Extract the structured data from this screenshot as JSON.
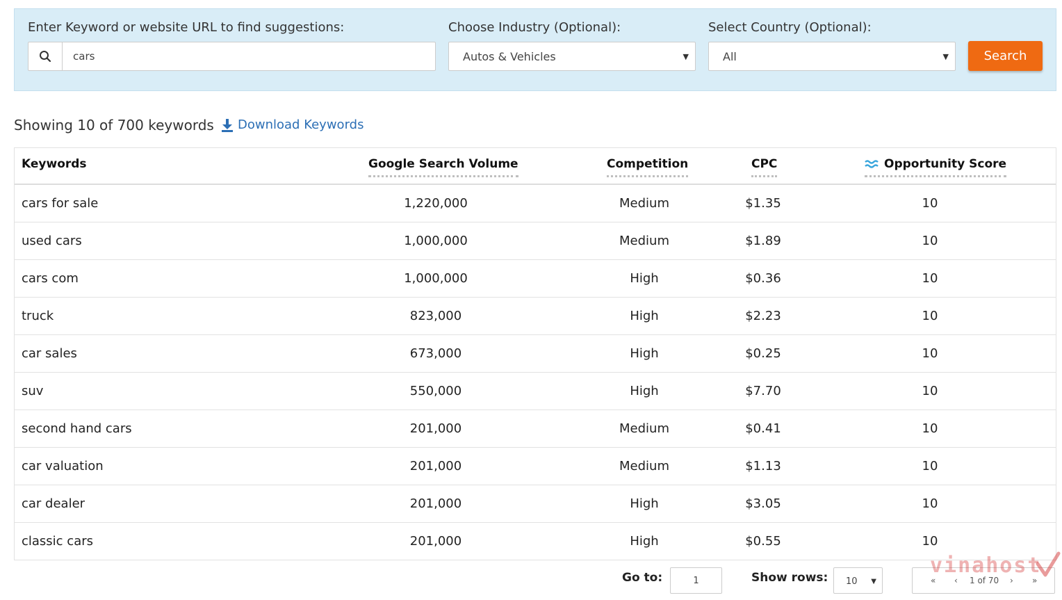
{
  "search_panel": {
    "keyword_label": "Enter Keyword or website URL to find suggestions:",
    "keyword_value": "cars",
    "industry_label": "Choose Industry (Optional):",
    "industry_value": "Autos & Vehicles",
    "country_label": "Select Country (Optional):",
    "country_value": "All",
    "search_button": "Search",
    "search_icon": "search-icon"
  },
  "summary": {
    "showing_text": "Showing 10 of 700 keywords",
    "download_label": "Download Keywords",
    "download_icon": "download-icon"
  },
  "table": {
    "headers": {
      "keywords": "Keywords",
      "volume": "Google Search Volume",
      "competition": "Competition",
      "cpc": "CPC",
      "opportunity": "Opportunity Score"
    },
    "rows": [
      {
        "keyword": "cars for sale",
        "volume": "1,220,000",
        "competition": "Medium",
        "cpc": "$1.35",
        "score": "10"
      },
      {
        "keyword": "used cars",
        "volume": "1,000,000",
        "competition": "Medium",
        "cpc": "$1.89",
        "score": "10"
      },
      {
        "keyword": "cars com",
        "volume": "1,000,000",
        "competition": "High",
        "cpc": "$0.36",
        "score": "10"
      },
      {
        "keyword": "truck",
        "volume": "823,000",
        "competition": "High",
        "cpc": "$2.23",
        "score": "10"
      },
      {
        "keyword": "car sales",
        "volume": "673,000",
        "competition": "High",
        "cpc": "$0.25",
        "score": "10"
      },
      {
        "keyword": "suv",
        "volume": "550,000",
        "competition": "High",
        "cpc": "$7.70",
        "score": "10"
      },
      {
        "keyword": "second hand cars",
        "volume": "201,000",
        "competition": "Medium",
        "cpc": "$0.41",
        "score": "10"
      },
      {
        "keyword": "car valuation",
        "volume": "201,000",
        "competition": "Medium",
        "cpc": "$1.13",
        "score": "10"
      },
      {
        "keyword": "car dealer",
        "volume": "201,000",
        "competition": "High",
        "cpc": "$3.05",
        "score": "10"
      },
      {
        "keyword": "classic cars",
        "volume": "201,000",
        "competition": "High",
        "cpc": "$0.55",
        "score": "10"
      }
    ]
  },
  "footer": {
    "goto_label": "Go to:",
    "goto_value": "1",
    "rows_label": "Show rows:",
    "rows_value": "10",
    "pager_first": "«",
    "pager_prev": "‹",
    "pager_info": "1 of 70",
    "pager_next": "›",
    "pager_last": "»"
  },
  "watermark": "vinahost",
  "colors": {
    "panel_bg": "#d9edf7",
    "search_button": "#ef6a12",
    "link": "#2c6fb5",
    "opportunity_icon": "#3aa6dd"
  }
}
